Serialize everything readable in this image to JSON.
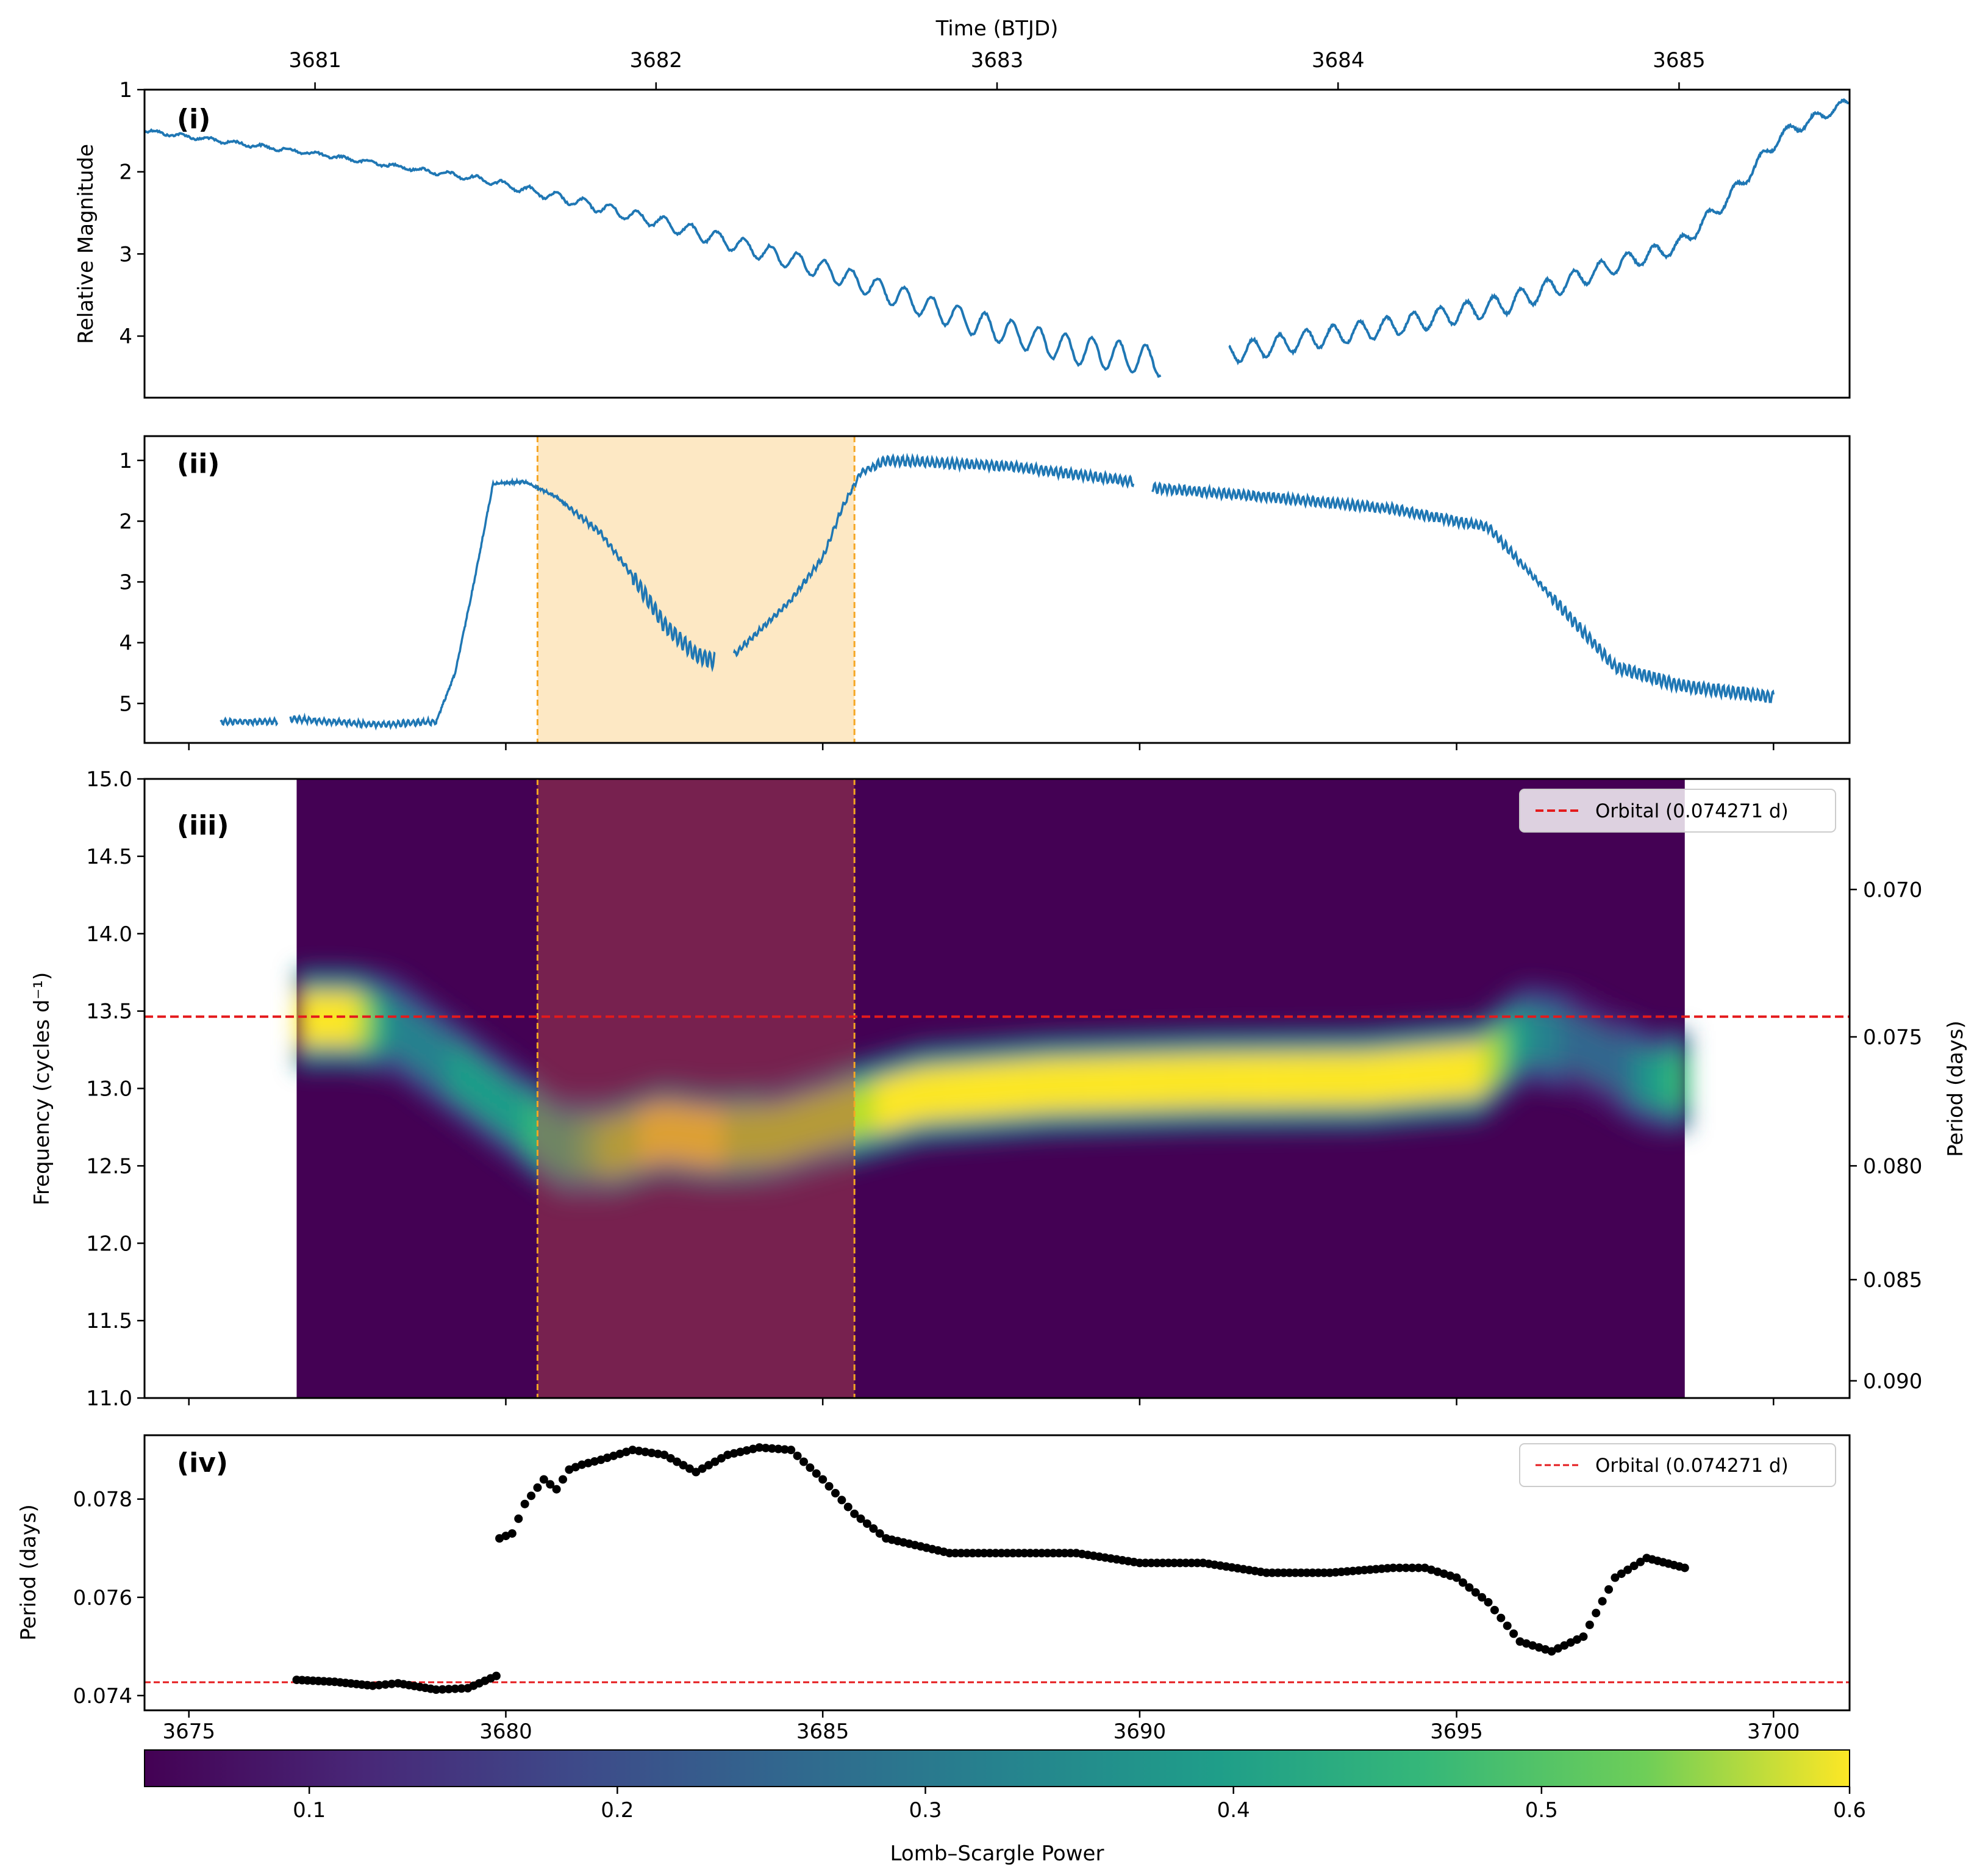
{
  "colors": {
    "lightcurve": "#1f77b4",
    "shade": "#fde8c4",
    "shade_edge": "#f5a623",
    "orbital": "#e41a1c",
    "points": "#000000",
    "heatmap_background": "#440154",
    "overlay": "#b54a4a"
  },
  "chart_data": [
    {
      "panel": "(i)",
      "type": "line",
      "xlabel_top": "Time (BTJD)",
      "ylabel": "Relative Magnitude",
      "xlim": [
        3680.5,
        3685.5
      ],
      "ylim": [
        4.75,
        1.0
      ],
      "xticks": [
        "3681",
        "3682",
        "3683",
        "3684",
        "3685"
      ],
      "yticks": [
        "1",
        "2",
        "3",
        "4"
      ],
      "y_inverted": true,
      "trend": {
        "x": [
          3680.5,
          3681.0,
          3681.5,
          3682.0,
          3682.5,
          3682.9,
          3683.2,
          3683.45
        ],
        "y": [
          1.5,
          1.78,
          2.1,
          2.6,
          3.2,
          3.8,
          4.15,
          4.3
        ]
      },
      "trend2": {
        "x": [
          3683.7,
          3683.9,
          3684.2,
          3684.5,
          3684.8,
          3685.0,
          3685.15,
          3685.3,
          3685.5
        ],
        "y": [
          4.2,
          4.05,
          3.85,
          3.6,
          3.15,
          2.9,
          2.3,
          1.55,
          1.15
        ]
      },
      "gap": [
        3683.48,
        3683.68
      ]
    },
    {
      "panel": "(ii)",
      "type": "line",
      "xlim": [
        3674.3,
        3701.2
      ],
      "ylim": [
        5.65,
        0.6
      ],
      "yticks": [
        "1",
        "2",
        "3",
        "4",
        "5"
      ],
      "y_inverted": true,
      "shaded_region": [
        3680.5,
        3685.5
      ],
      "segments": [
        {
          "x": [
            3675.5,
            3676.4
          ],
          "y": [
            5.3,
            5.3
          ]
        },
        {
          "x": [
            3676.6,
            3677.2,
            3678.0,
            3678.9,
            3679.2,
            3679.5,
            3679.8,
            3680.3,
            3680.8,
            3681.5,
            3682.0,
            3682.5,
            3683.0,
            3683.3
          ],
          "y": [
            5.25,
            5.3,
            5.35,
            5.3,
            4.5,
            3.0,
            1.38,
            1.35,
            1.6,
            2.2,
            2.9,
            3.7,
            4.2,
            4.3
          ]
        },
        {
          "x": [
            3683.6,
            3684.0,
            3684.5,
            3685.0,
            3685.3,
            3685.6,
            3686.0,
            3688.0,
            3689.9
          ],
          "y": [
            4.2,
            3.8,
            3.3,
            2.6,
            1.8,
            1.2,
            1.0,
            1.1,
            1.35
          ]
        },
        {
          "x": [
            3690.2,
            3692.0,
            3694.0,
            3695.5,
            3696.2,
            3696.8,
            3697.5,
            3698.5,
            3700.0
          ],
          "y": [
            1.45,
            1.6,
            1.8,
            2.1,
            2.9,
            3.6,
            4.4,
            4.7,
            4.9
          ]
        }
      ]
    },
    {
      "panel": "(iii)",
      "type": "heatmap",
      "ylabel": "Frequency (cycles d⁻¹)",
      "ylabel_right": "Period (days)",
      "xlim": [
        3674.3,
        3701.2
      ],
      "ylim": [
        11.0,
        15.0
      ],
      "yticks": [
        "11.0",
        "11.5",
        "12.0",
        "12.5",
        "13.0",
        "13.5",
        "14.0",
        "14.5",
        "15.0"
      ],
      "yticks_right": [
        "0.070",
        "0.075",
        "0.080",
        "0.085",
        "0.090"
      ],
      "data_xrange": [
        3676.7,
        3698.6
      ],
      "shaded_region": [
        3680.5,
        3685.5
      ],
      "orbital_frequency": 13.464,
      "legend": "Orbital (0.074271 d)",
      "ridge": {
        "x": [
          3676.7,
          3677.5,
          3678.2,
          3680.8,
          3681.6,
          3682.4,
          3683.2,
          3684.2,
          3685.2,
          3686.5,
          3688.5,
          3691.0,
          3693.5,
          3695.3,
          3696.0,
          3696.8,
          3697.5,
          3698.0,
          3698.6
        ],
        "freq": [
          13.45,
          13.45,
          13.4,
          12.62,
          12.62,
          12.72,
          12.68,
          12.7,
          12.82,
          12.96,
          13.02,
          13.05,
          13.06,
          13.12,
          13.35,
          13.3,
          13.15,
          13.05,
          13.05
        ],
        "power": [
          0.62,
          0.6,
          0.25,
          0.4,
          0.52,
          0.6,
          0.58,
          0.5,
          0.52,
          0.62,
          0.62,
          0.62,
          0.62,
          0.6,
          0.32,
          0.2,
          0.2,
          0.35,
          0.4
        ]
      }
    },
    {
      "panel": "(iv)",
      "type": "scatter",
      "ylabel": "Period (days)",
      "xlim": [
        3674.3,
        3701.2
      ],
      "ylim": [
        0.0737,
        0.0793
      ],
      "xticks": [
        "3675",
        "3680",
        "3685",
        "3690",
        "3695",
        "3700"
      ],
      "yticks": [
        "0.074",
        "0.076",
        "0.078"
      ],
      "orbital_period": 0.074271,
      "legend": "Orbital (0.074271 d)",
      "points": {
        "x": [
          3676.7,
          3677.3,
          3677.9,
          3678.3,
          3678.9,
          3679.4,
          3679.85,
          3679.9,
          3680.1,
          3680.3,
          3680.6,
          3680.8,
          3681.0,
          3681.2,
          3681.5,
          3682.0,
          3682.5,
          3683.0,
          3683.5,
          3684.0,
          3684.5,
          3685.0,
          3685.5,
          3686.0,
          3687.0,
          3688.0,
          3689.0,
          3690.0,
          3691.0,
          3692.0,
          3693.0,
          3694.0,
          3694.5,
          3695.0,
          3695.5,
          3696.0,
          3696.5,
          3697.0,
          3697.5,
          3698.0,
          3698.6
        ],
        "y": [
          0.07432,
          0.07428,
          0.0742,
          0.07425,
          0.07412,
          0.07415,
          0.0744,
          0.0772,
          0.0773,
          0.0779,
          0.0784,
          0.0782,
          0.0786,
          0.0787,
          0.0788,
          0.079,
          0.0789,
          0.07855,
          0.0789,
          0.07905,
          0.079,
          0.0784,
          0.0777,
          0.0772,
          0.0769,
          0.0769,
          0.0769,
          0.0767,
          0.0767,
          0.0765,
          0.0765,
          0.0766,
          0.0766,
          0.0764,
          0.0759,
          0.0751,
          0.0749,
          0.0752,
          0.0764,
          0.0768,
          0.0766
        ]
      }
    }
  ],
  "colorbar": {
    "label": "Lomb–Scargle Power",
    "range": [
      0.0,
      0.6
    ],
    "ticks": [
      "0.1",
      "0.2",
      "0.3",
      "0.4",
      "0.5",
      "0.6"
    ],
    "colormap": "viridis"
  }
}
